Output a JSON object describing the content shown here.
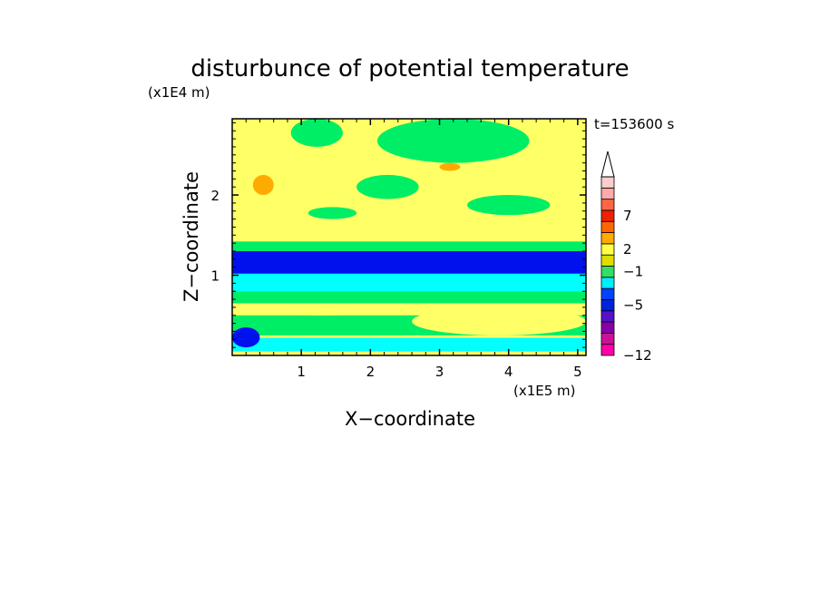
{
  "chart_data": {
    "type": "heatmap",
    "title": "disturbunce of potential temperature",
    "time_label": "t=153600 s",
    "xlabel": "X−coordinate",
    "ylabel": "Z−coordinate",
    "x_unit": "(x1E5 m)",
    "y_unit": "(x1E4 m)",
    "xlim": [
      0,
      5.12
    ],
    "ylim": [
      0,
      2.95
    ],
    "x_ticks": [
      1,
      2,
      3,
      4,
      5
    ],
    "y_ticks": [
      1,
      2
    ],
    "x_tick_labels": [
      "1",
      "2",
      "3",
      "4",
      "5"
    ],
    "y_tick_labels": [
      "1",
      "2"
    ],
    "colorbar": {
      "tick_values": [
        -12,
        -5,
        -1,
        2,
        7
      ],
      "tick_labels": [
        "−12",
        "−5",
        "−1",
        "2",
        "7"
      ],
      "colors": [
        "#ff00aa",
        "#cc1199",
        "#8800aa",
        "#5511cc",
        "#0022dd",
        "#0044ff",
        "#00eeff",
        "#33dd66",
        "#dddd00",
        "#ffff44",
        "#ffaa00",
        "#ff6600",
        "#ee2200",
        "#ff6644",
        "#ffaaaa",
        "#ffcccc"
      ],
      "extend_max": true
    },
    "background_color": "#ffff66",
    "field_bands": [
      {
        "z": [
          1.3,
          1.42
        ],
        "color": "#00ee66"
      },
      {
        "z": [
          0.8,
          1.3
        ],
        "color": "#00ffff"
      },
      {
        "z": [
          1.02,
          1.3
        ],
        "color": "#0011ee"
      },
      {
        "z": [
          0.65,
          0.8
        ],
        "color": "#00ee66"
      },
      {
        "z": [
          0.25,
          0.5
        ],
        "color": "#00ee66"
      },
      {
        "z": [
          0.05,
          0.22
        ],
        "color": "#00ffff"
      }
    ],
    "features": [
      {
        "x": [
          2.1,
          4.3
        ],
        "z": [
          2.4,
          2.95
        ],
        "color": "#00ee66"
      },
      {
        "x": [
          0.85,
          1.6
        ],
        "z": [
          2.6,
          2.95
        ],
        "color": "#00ee66"
      },
      {
        "x": [
          1.8,
          2.7
        ],
        "z": [
          1.95,
          2.25
        ],
        "color": "#00ee66"
      },
      {
        "x": [
          1.1,
          1.8
        ],
        "z": [
          1.7,
          1.85
        ],
        "color": "#00ee66"
      },
      {
        "x": [
          3.4,
          4.6
        ],
        "z": [
          1.75,
          2.0
        ],
        "color": "#00ee66"
      },
      {
        "x": [
          0.3,
          0.6
        ],
        "z": [
          2.0,
          2.25
        ],
        "color": "#ffaa00"
      },
      {
        "x": [
          3.0,
          3.3
        ],
        "z": [
          2.3,
          2.4
        ],
        "color": "#ffaa00"
      },
      {
        "x": [
          0.0,
          0.4
        ],
        "z": [
          0.1,
          0.35
        ],
        "color": "#0011ee"
      },
      {
        "x": [
          2.6,
          5.12
        ],
        "z": [
          0.25,
          0.6
        ],
        "color": "#ffff66"
      },
      {
        "x": [
          0.0,
          2.6
        ],
        "z": [
          0.5,
          0.65
        ],
        "color": "#ffff66"
      }
    ]
  }
}
